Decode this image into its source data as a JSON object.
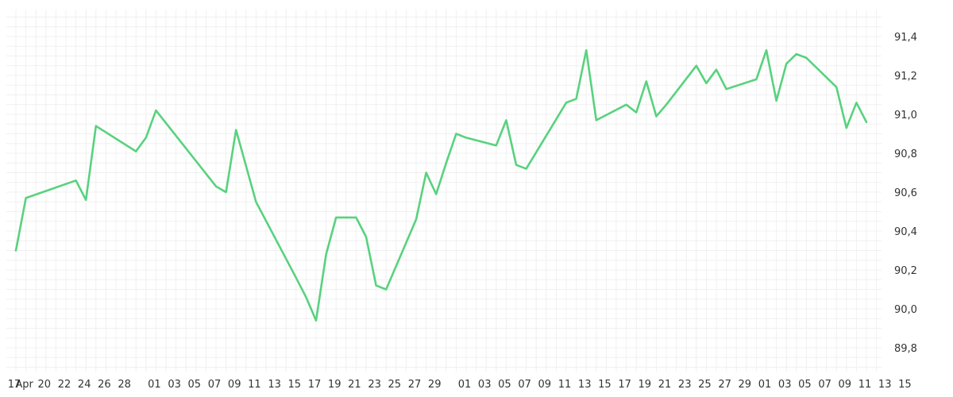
{
  "chart_data": {
    "type": "line",
    "title": "",
    "xlabel": "",
    "ylabel": "",
    "grid": true,
    "line_color": "#58d27e",
    "ylim": [
      89.7,
      91.5
    ],
    "y_ticks": [
      "89,8",
      "90,0",
      "90,2",
      "90,4",
      "90,6",
      "90,8",
      "91,0",
      "91,2",
      "91,4"
    ],
    "x_tick_labels": [
      "17",
      "Apr",
      "20",
      "22",
      "24",
      "26",
      "28",
      "01",
      "03",
      "05",
      "07",
      "09",
      "11",
      "13",
      "15",
      "17",
      "19",
      "21",
      "23",
      "25",
      "27",
      "29",
      "01",
      "03",
      "05",
      "07",
      "09",
      "11",
      "13",
      "15",
      "17",
      "19",
      "21",
      "23",
      "25",
      "27",
      "29",
      "01",
      "03",
      "05",
      "07",
      "09",
      "11",
      "13",
      "15"
    ],
    "x_tick_days": [
      0,
      1,
      3,
      5,
      7,
      9,
      11,
      14,
      16,
      18,
      20,
      22,
      24,
      26,
      28,
      30,
      32,
      34,
      36,
      38,
      40,
      42,
      45,
      47,
      49,
      51,
      53,
      55,
      57,
      59,
      61,
      63,
      65,
      67,
      69,
      71,
      73,
      75,
      77,
      79,
      81,
      83,
      85,
      87,
      89
    ],
    "series": [
      {
        "name": "",
        "x": [
          0,
          1,
          6,
          7,
          8,
          12,
          13,
          14,
          20,
          21,
          22,
          24,
          28,
          29,
          30,
          31,
          32,
          33,
          34,
          35,
          36,
          37,
          40,
          41,
          42,
          43,
          44,
          45,
          48,
          49,
          50,
          51,
          55,
          56,
          57,
          58,
          61,
          62,
          63,
          64,
          65,
          68,
          69,
          70,
          71,
          74,
          75,
          76,
          77,
          78,
          79,
          82,
          83,
          84,
          85
        ],
        "y": [
          90.3,
          90.57,
          90.66,
          90.56,
          90.94,
          90.81,
          90.88,
          91.02,
          90.63,
          90.6,
          90.92,
          90.55,
          90.16,
          90.06,
          89.94,
          90.28,
          90.47,
          90.47,
          90.47,
          90.37,
          90.12,
          90.1,
          90.46,
          90.7,
          90.59,
          90.75,
          90.9,
          90.88,
          90.84,
          90.97,
          90.74,
          90.72,
          91.06,
          91.08,
          91.33,
          90.97,
          91.05,
          91.01,
          91.17,
          90.99,
          91.05,
          91.25,
          91.16,
          91.23,
          91.13,
          91.18,
          91.33,
          91.07,
          91.26,
          91.31,
          91.29,
          91.14,
          90.93,
          91.06,
          90.96
        ]
      }
    ]
  }
}
